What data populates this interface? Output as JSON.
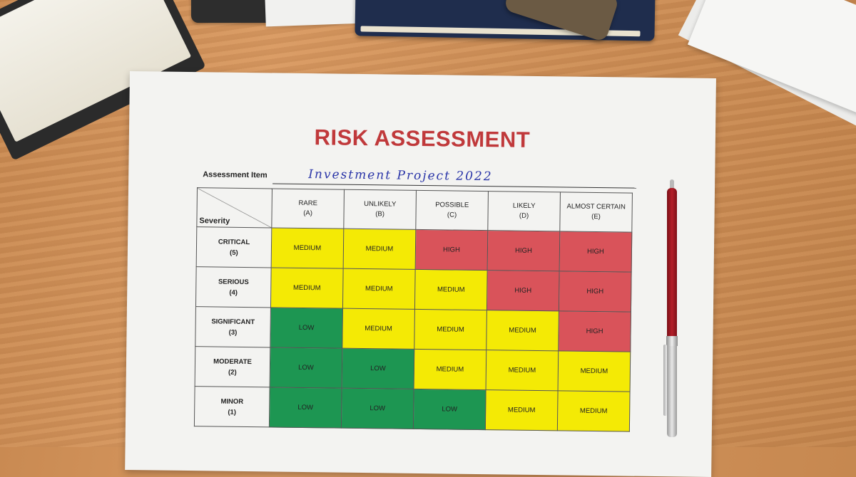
{
  "document": {
    "title": "RISK ASSESSMENT",
    "assessment_item_label": "Assessment Item",
    "assessment_item_value": "Investment Project 2022"
  },
  "matrix": {
    "corner_label": "Severity",
    "likelihood_columns": [
      {
        "name": "RARE",
        "code": "(A)"
      },
      {
        "name": "UNLIKELY",
        "code": "(B)"
      },
      {
        "name": "POSSIBLE",
        "code": "(C)"
      },
      {
        "name": "LIKELY",
        "code": "(D)"
      },
      {
        "name": "ALMOST CERTAIN",
        "code": "(E)"
      }
    ],
    "severity_rows": [
      {
        "name": "CRITICAL",
        "code": "(5)",
        "cells": [
          "MEDIUM",
          "MEDIUM",
          "HIGH",
          "HIGH",
          "HIGH"
        ]
      },
      {
        "name": "SERIOUS",
        "code": "(4)",
        "cells": [
          "MEDIUM",
          "MEDIUM",
          "MEDIUM",
          "HIGH",
          "HIGH"
        ]
      },
      {
        "name": "SIGNIFICANT",
        "code": "(3)",
        "cells": [
          "LOW",
          "MEDIUM",
          "MEDIUM",
          "MEDIUM",
          "HIGH"
        ]
      },
      {
        "name": "MODERATE",
        "code": "(2)",
        "cells": [
          "LOW",
          "LOW",
          "MEDIUM",
          "MEDIUM",
          "MEDIUM"
        ]
      },
      {
        "name": "MINOR",
        "code": "(1)",
        "cells": [
          "LOW",
          "LOW",
          "LOW",
          "MEDIUM",
          "MEDIUM"
        ]
      }
    ],
    "level_colors": {
      "LOW": "#1d9652",
      "MEDIUM": "#f4ea05",
      "HIGH": "#d9535a"
    }
  }
}
